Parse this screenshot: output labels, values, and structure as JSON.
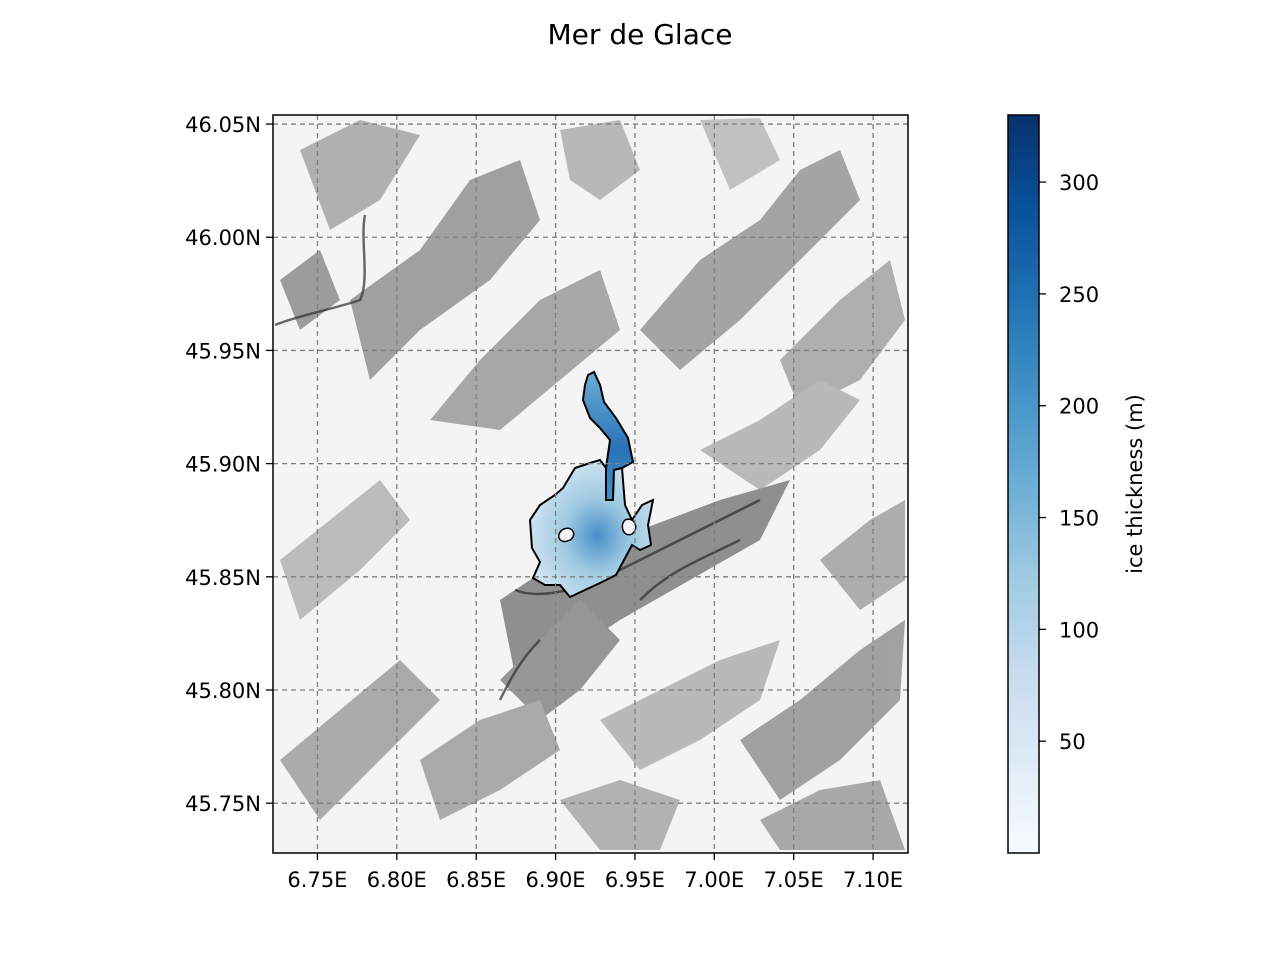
{
  "title": "Mer de Glace",
  "map": {
    "x_ticks": [
      "6.75E",
      "6.80E",
      "6.85E",
      "6.90E",
      "6.95E",
      "7.00E",
      "7.05E",
      "7.10E"
    ],
    "y_ticks": [
      "46.05N",
      "46.00N",
      "45.95N",
      "45.90N",
      "45.85N",
      "45.80N",
      "45.75N"
    ],
    "x_tick_values": [
      6.75,
      6.8,
      6.85,
      6.9,
      6.95,
      7.0,
      7.05,
      7.1
    ],
    "y_tick_values": [
      46.05,
      46.0,
      45.95,
      45.9,
      45.85,
      45.8,
      45.75
    ],
    "lon_range": [
      6.722,
      7.122
    ],
    "lat_range": [
      45.728,
      46.054
    ],
    "grid": "dashed",
    "basemap": "hillshade",
    "glacier_outline_color": "#000000"
  },
  "colorbar": {
    "label": "ice thickness (m)",
    "ticks": [
      "50",
      "100",
      "150",
      "200",
      "250",
      "300"
    ],
    "tick_values": [
      50,
      100,
      150,
      200,
      250,
      300
    ],
    "range": [
      0,
      330
    ],
    "colormap": "Blues",
    "colors": [
      "#f7fbff",
      "#deebf7",
      "#c6dbef",
      "#9ecae1",
      "#6baed6",
      "#4292c6",
      "#2171b5",
      "#08519c",
      "#08306b"
    ]
  }
}
